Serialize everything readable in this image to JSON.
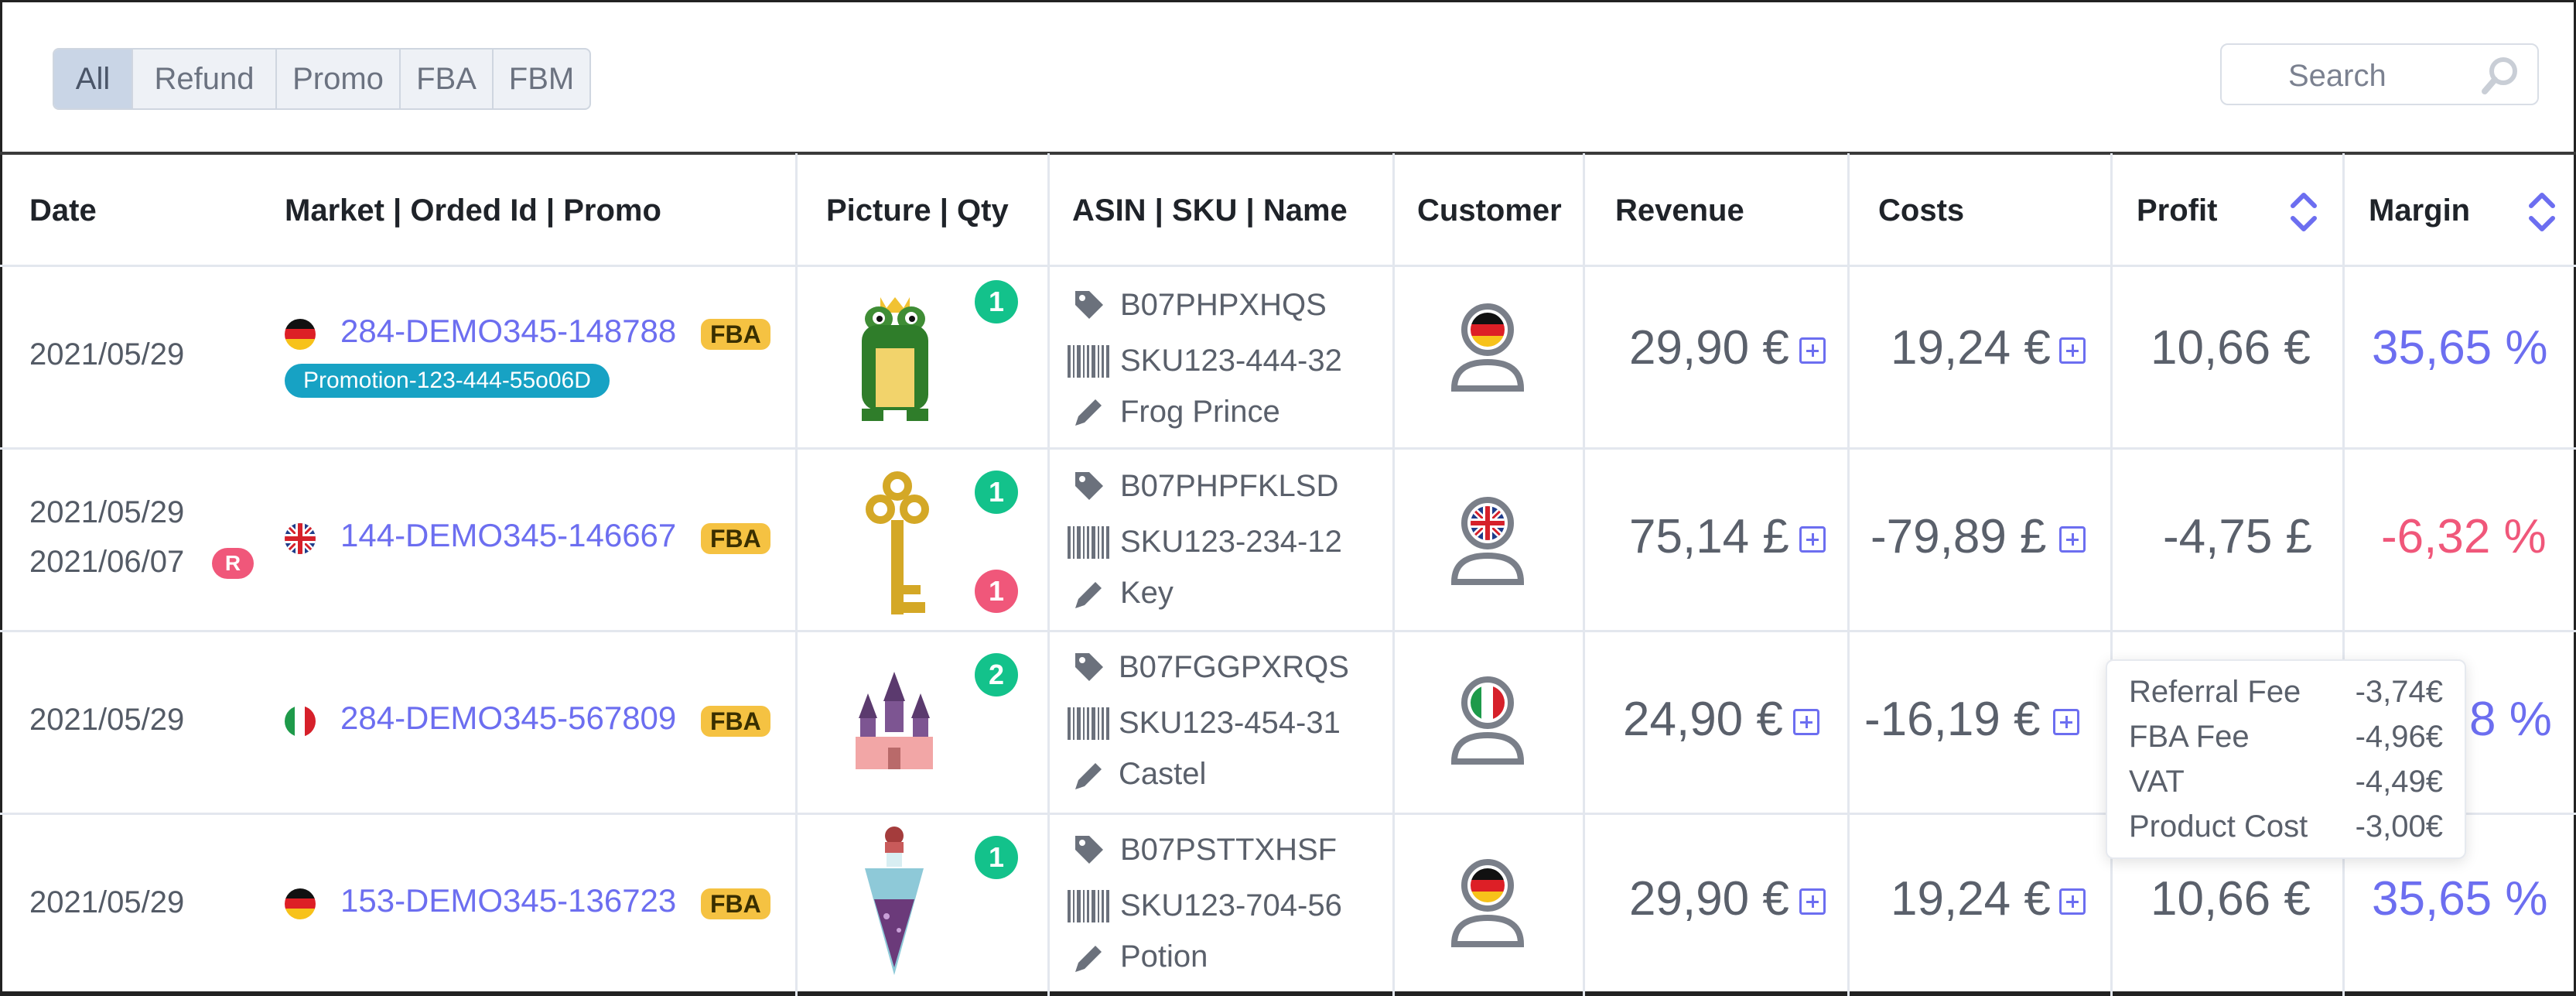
{
  "filters": [
    {
      "label": "All",
      "active": true
    },
    {
      "label": "Refund",
      "active": false
    },
    {
      "label": "Promo",
      "active": false
    },
    {
      "label": "FBA",
      "active": false
    },
    {
      "label": "FBM",
      "active": false
    }
  ],
  "search": {
    "placeholder": "Search"
  },
  "columns": {
    "date": "Date",
    "market": "Market | Orded Id | Promo",
    "picture": "Picture | Qty",
    "asin": "ASIN | SKU | Name",
    "customer": "Customer",
    "revenue": "Revenue",
    "costs": "Costs",
    "profit": "Profit",
    "margin": "Margin"
  },
  "rows": [
    {
      "date": "2021/05/29",
      "refund_date": "",
      "market_flag": "de-flag-icon",
      "order_id": "284-DEMO345-148788",
      "fulfillment": "FBA",
      "promo": "Promotion-123-444-55o06D",
      "product_icon": "frog-prince-icon",
      "qty": "1",
      "refund_qty": "",
      "asin": "B07PHPXHQS",
      "sku": "SKU123-444-32",
      "name": "Frog Prince",
      "revenue": "29,90 €",
      "costs": "19,24 €",
      "profit": "10,66 €",
      "margin": "35,65 %"
    },
    {
      "date": "2021/05/29",
      "refund_date": "2021/06/07",
      "refund_badge": "R",
      "market_flag": "uk-flag-icon",
      "order_id": "144-DEMO345-146667",
      "fulfillment": "FBA",
      "promo": "",
      "product_icon": "key-icon",
      "qty": "1",
      "refund_qty": "1",
      "asin": "B07PHPFKLSD",
      "sku": "SKU123-234-12",
      "name": "Key",
      "revenue": "75,14 £",
      "costs": "-79,89 £",
      "profit": "-4,75 £",
      "margin": "-6,32 %"
    },
    {
      "date": "2021/05/29",
      "refund_date": "",
      "market_flag": "it-flag-icon",
      "order_id": "284-DEMO345-567809",
      "fulfillment": "FBA",
      "promo": "",
      "product_icon": "castle-icon",
      "qty": "2",
      "refund_qty": "",
      "asin": "B07FGGPXRQS",
      "sku": "SKU123-454-31",
      "name": "Castel",
      "revenue": "24,90 €",
      "costs": "-16,19 €",
      "profit": "",
      "margin_visible": "8 %"
    },
    {
      "date": "2021/05/29",
      "refund_date": "",
      "market_flag": "de-flag-icon",
      "order_id": "153-DEMO345-136723",
      "fulfillment": "FBA",
      "promo": "",
      "product_icon": "potion-icon",
      "qty": "1",
      "refund_qty": "",
      "asin": "B07PSTTXHSF",
      "sku": "SKU123-704-56",
      "name": "Potion",
      "revenue": "29,90 €",
      "costs": "19,24 €",
      "profit": "10,66 €",
      "margin": "35,65 %"
    }
  ],
  "cost_tooltip": [
    {
      "label": "Referral Fee",
      "value": "-3,74€"
    },
    {
      "label": "FBA Fee",
      "value": "-4,96€"
    },
    {
      "label": "VAT",
      "value": "-4,49€"
    },
    {
      "label": "Product Cost",
      "value": "-3,00€"
    }
  ],
  "colors": {
    "accent": "#6c6ef0",
    "negative": "#f0577a",
    "fba_badge": "#f5c242",
    "promo_badge": "#17a2c4",
    "qty_badge": "#13c28b"
  }
}
